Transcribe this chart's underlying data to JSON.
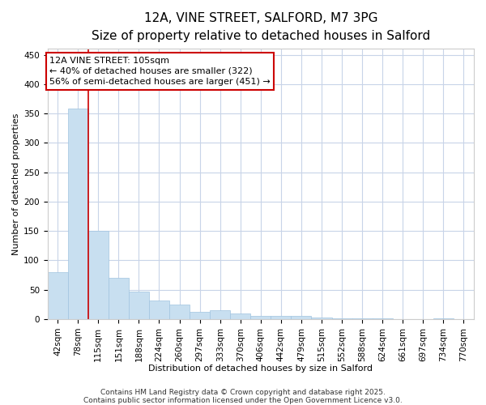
{
  "title_line1": "12A, VINE STREET, SALFORD, M7 3PG",
  "title_line2": "Size of property relative to detached houses in Salford",
  "xlabel": "Distribution of detached houses by size in Salford",
  "ylabel": "Number of detached properties",
  "bar_labels": [
    "42sqm",
    "78sqm",
    "115sqm",
    "151sqm",
    "188sqm",
    "224sqm",
    "260sqm",
    "297sqm",
    "333sqm",
    "370sqm",
    "406sqm",
    "442sqm",
    "479sqm",
    "515sqm",
    "552sqm",
    "588sqm",
    "624sqm",
    "661sqm",
    "697sqm",
    "734sqm",
    "770sqm"
  ],
  "bar_values": [
    80,
    358,
    150,
    70,
    47,
    32,
    25,
    13,
    15,
    9,
    5,
    6,
    6,
    3,
    1,
    1,
    1,
    0,
    0,
    1,
    0
  ],
  "bar_color": "#c8dff0",
  "bar_edgecolor": "#a0c4e0",
  "bar_linewidth": 0.5,
  "vline_x": 2.0,
  "vline_color": "#cc0000",
  "vline_linewidth": 1.2,
  "annotation_text_line1": "12A VINE STREET: 105sqm",
  "annotation_text_line2": "← 40% of detached houses are smaller (322)",
  "annotation_text_line3": "56% of semi-detached houses are larger (451) →",
  "ylim": [
    0,
    460
  ],
  "yticks": [
    0,
    50,
    100,
    150,
    200,
    250,
    300,
    350,
    400,
    450
  ],
  "grid_color": "#c8d4e8",
  "background_color": "#ffffff",
  "plot_bg_color": "#ffffff",
  "footer_line1": "Contains HM Land Registry data © Crown copyright and database right 2025.",
  "footer_line2": "Contains public sector information licensed under the Open Government Licence v3.0.",
  "title_fontsize": 11,
  "subtitle_fontsize": 9,
  "axis_label_fontsize": 8,
  "tick_fontsize": 7.5,
  "annotation_fontsize": 8,
  "footer_fontsize": 6.5
}
